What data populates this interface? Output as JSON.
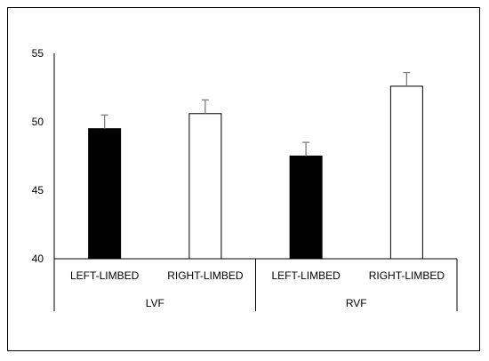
{
  "chart_data": {
    "type": "bar",
    "title": "",
    "xlabel": "",
    "ylabel": "",
    "ylim": [
      40,
      55
    ],
    "yticks": [
      40,
      45,
      50,
      55
    ],
    "grid": false,
    "legend": "none",
    "groups": [
      "LVF",
      "RVF"
    ],
    "categories": [
      "LEFT-LIMBED",
      "RIGHT-LIMBED",
      "LEFT-LIMBED",
      "RIGHT-LIMBED"
    ],
    "category_group": [
      "LVF",
      "LVF",
      "RVF",
      "RVF"
    ],
    "values": [
      49.5,
      50.6,
      47.5,
      52.6
    ],
    "error": [
      1.0,
      1.0,
      1.0,
      1.0
    ],
    "bar_fill": [
      "#000000",
      "#ffffff",
      "#000000",
      "#ffffff"
    ],
    "bar_stroke": "#000000",
    "error_bar_color": "#7f7f7f"
  }
}
